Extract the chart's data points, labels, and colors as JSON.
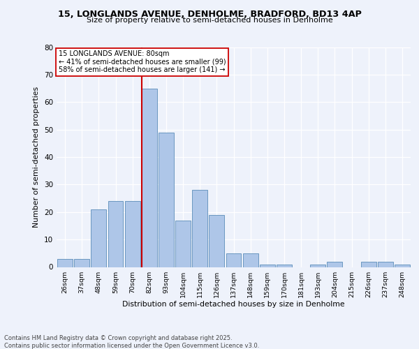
{
  "title_line1": "15, LONGLANDS AVENUE, DENHOLME, BRADFORD, BD13 4AP",
  "title_line2": "Size of property relative to semi-detached houses in Denholme",
  "xlabel": "Distribution of semi-detached houses by size in Denholme",
  "ylabel": "Number of semi-detached properties",
  "categories": [
    "26sqm",
    "37sqm",
    "48sqm",
    "59sqm",
    "70sqm",
    "82sqm",
    "93sqm",
    "104sqm",
    "115sqm",
    "126sqm",
    "137sqm",
    "148sqm",
    "159sqm",
    "170sqm",
    "181sqm",
    "193sqm",
    "204sqm",
    "215sqm",
    "226sqm",
    "237sqm",
    "248sqm"
  ],
  "values": [
    3,
    3,
    21,
    24,
    24,
    65,
    49,
    17,
    28,
    19,
    5,
    5,
    1,
    1,
    0,
    1,
    2,
    0,
    2,
    2,
    1
  ],
  "bar_color": "#aec6e8",
  "bar_edge_color": "#5b8db8",
  "vline_color": "#cc0000",
  "annotation_title": "15 LONGLANDS AVENUE: 80sqm",
  "annotation_line1": "← 41% of semi-detached houses are smaller (99)",
  "annotation_line2": "58% of semi-detached houses are larger (141) →",
  "annotation_box_color": "#cc0000",
  "ylim": [
    0,
    80
  ],
  "yticks": [
    0,
    10,
    20,
    30,
    40,
    50,
    60,
    70,
    80
  ],
  "background_color": "#eef2fb",
  "footnote_line1": "Contains HM Land Registry data © Crown copyright and database right 2025.",
  "footnote_line2": "Contains public sector information licensed under the Open Government Licence v3.0."
}
